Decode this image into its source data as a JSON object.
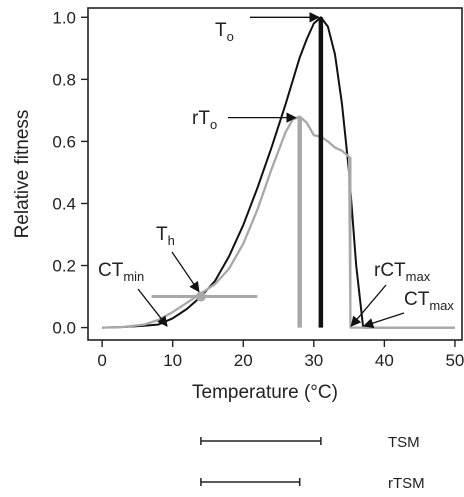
{
  "chart_data": {
    "type": "line",
    "xlabel": "Temperature (°C)",
    "ylabel": "Relative fitness",
    "xlim": [
      -2,
      51
    ],
    "ylim": [
      -0.04,
      1.03
    ],
    "x_ticks": [
      0,
      10,
      20,
      30,
      40,
      50
    ],
    "y_ticks": [
      "0.0",
      "0.2",
      "0.4",
      "0.6",
      "0.8",
      "1.0"
    ],
    "y_tick_values": [
      0,
      0.2,
      0.4,
      0.6,
      0.8,
      1.0
    ],
    "grid": false,
    "colors": {
      "black": "#111111",
      "gray": "#a8a8a8"
    },
    "series": [
      {
        "color": "#111111",
        "x": [
          0,
          3,
          6,
          8,
          10,
          12,
          14,
          16,
          18,
          20,
          22,
          24,
          26,
          28,
          29,
          30,
          31,
          32,
          33,
          34,
          35,
          36,
          37,
          40,
          50
        ],
        "y": [
          0,
          0.002,
          0.006,
          0.01,
          0.03,
          0.06,
          0.1,
          0.15,
          0.23,
          0.33,
          0.45,
          0.58,
          0.72,
          0.87,
          0.93,
          0.98,
          1.0,
          0.97,
          0.88,
          0.72,
          0.5,
          0.2,
          0.0,
          0,
          0
        ]
      },
      {
        "color": "#a8a8a8",
        "x": [
          0,
          3,
          6,
          8,
          10,
          12,
          14,
          16,
          18,
          20,
          22,
          24,
          26,
          27,
          28,
          29,
          30,
          31,
          32,
          33,
          34,
          35,
          35.2,
          40,
          50
        ],
        "y": [
          0,
          0.002,
          0.01,
          0.025,
          0.05,
          0.08,
          0.11,
          0.14,
          0.19,
          0.27,
          0.38,
          0.51,
          0.63,
          0.67,
          0.68,
          0.66,
          0.62,
          0.615,
          0.6,
          0.58,
          0.57,
          0.55,
          0.0,
          0,
          0
        ]
      }
    ],
    "vertical_markers": [
      {
        "name": "To",
        "x": 31,
        "y": 1.0,
        "color": "#111111"
      },
      {
        "name": "rTo",
        "x": 28,
        "y": 0.68,
        "color": "#a8a8a8"
      },
      {
        "name": "rCTmax",
        "x": 35.2,
        "y": 0.55,
        "color": "#a8a8a8"
      }
    ],
    "th_point": {
      "x": 14,
      "y": 0.1,
      "hbar_from": 7,
      "hbar_to": 22
    },
    "annotations": [
      {
        "main": "T",
        "sub": "o"
      },
      {
        "main": "rT",
        "sub": "o"
      },
      {
        "main": "T",
        "sub": "h"
      },
      {
        "main": "CT",
        "sub": "min"
      },
      {
        "main": "rCT",
        "sub": "max"
      },
      {
        "main": "CT",
        "sub": "max"
      }
    ],
    "legend_bars": [
      {
        "label": "TSM",
        "from": 14,
        "to": 31
      },
      {
        "label": "rTSM",
        "from": 14,
        "to": 28
      }
    ]
  }
}
